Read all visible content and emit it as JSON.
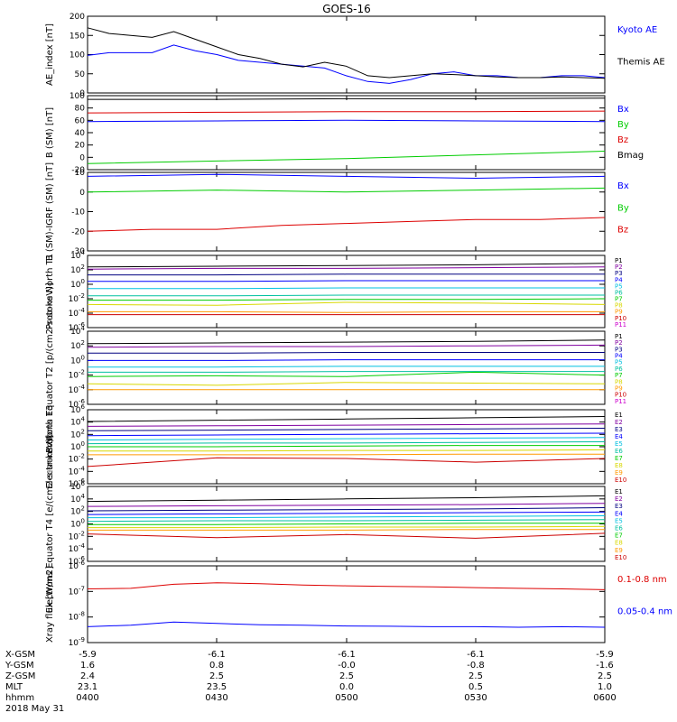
{
  "title": "GOES-16",
  "colors": {
    "black": "#000000",
    "blue": "#0000ff",
    "green": "#00cc00",
    "red": "#dd0000",
    "navy": "#000080",
    "purple": "#8000a0",
    "cyan": "#00c0e0",
    "teal": "#00c0a0",
    "yellow": "#d8d800",
    "orange": "#ff9900",
    "darkred": "#cc0000",
    "magenta": "#cc00cc"
  },
  "ephemeris": {
    "rows": [
      {
        "label": "X-GSM",
        "values": [
          "-5.9",
          "-6.1",
          "-6.1",
          "-6.1",
          "-5.9"
        ]
      },
      {
        "label": "Y-GSM",
        "values": [
          "1.6",
          "0.8",
          "-0.0",
          "-0.8",
          "-1.6"
        ]
      },
      {
        "label": "Z-GSM",
        "values": [
          "2.4",
          "2.5",
          "2.5",
          "2.5",
          "2.5"
        ]
      },
      {
        "label": "MLT",
        "values": [
          "23.1",
          "23.5",
          "0.0",
          "0.5",
          "1.0"
        ]
      },
      {
        "label": "hhmm",
        "values": [
          "0400",
          "0430",
          "0500",
          "0530",
          "0600"
        ]
      }
    ],
    "date": "2018 May 31"
  },
  "chart_data": [
    {
      "type": "line",
      "panel": "ae",
      "ylabel": "AE_index [nT]",
      "ylim": [
        0,
        200
      ],
      "yticks": [
        "0",
        "50",
        "100",
        "150",
        "200"
      ],
      "xlim": [
        "0400",
        "0600"
      ],
      "series": [
        {
          "name": "Kyoto AE",
          "color": "#0000ff",
          "x_minutes": [
            0,
            5,
            10,
            15,
            20,
            25,
            30,
            35,
            40,
            45,
            50,
            55,
            60,
            65,
            70,
            75,
            80,
            85,
            90,
            95,
            100,
            105,
            110,
            115,
            120
          ],
          "values": [
            98,
            105,
            105,
            105,
            125,
            110,
            100,
            85,
            80,
            75,
            70,
            65,
            45,
            30,
            25,
            35,
            50,
            55,
            45,
            45,
            40,
            40,
            45,
            45,
            40
          ]
        },
        {
          "name": "Themis AE",
          "color": "#000000",
          "x_minutes": [
            0,
            5,
            10,
            15,
            20,
            25,
            30,
            35,
            40,
            45,
            50,
            55,
            60,
            65,
            70,
            75,
            80,
            85,
            90,
            95,
            100,
            105,
            110,
            115,
            120
          ],
          "values": [
            170,
            155,
            150,
            145,
            160,
            140,
            120,
            100,
            90,
            75,
            68,
            80,
            70,
            45,
            40,
            45,
            50,
            48,
            45,
            42,
            40,
            40,
            42,
            40,
            38
          ]
        }
      ]
    },
    {
      "type": "line",
      "panel": "b_sm",
      "ylabel": "B (SM) [nT]",
      "ylim": [
        -20,
        100
      ],
      "yticks": [
        "-20",
        "0",
        "20",
        "40",
        "60",
        "80",
        "100"
      ],
      "series": [
        {
          "name": "Bx",
          "color": "#0000ff",
          "x_minutes": [
            0,
            30,
            60,
            90,
            120
          ],
          "values": [
            58,
            59,
            60,
            59,
            58
          ]
        },
        {
          "name": "By",
          "color": "#00cc00",
          "x_minutes": [
            0,
            30,
            60,
            90,
            120
          ],
          "values": [
            -10,
            -6,
            -2,
            4,
            10
          ]
        },
        {
          "name": "Bz",
          "color": "#dd0000",
          "x_minutes": [
            0,
            30,
            60,
            90,
            120
          ],
          "values": [
            72,
            73,
            74,
            74,
            75
          ]
        },
        {
          "name": "Bmag",
          "color": "#000000",
          "x_minutes": [
            0,
            30,
            60,
            90,
            120
          ],
          "values": [
            94,
            94,
            95,
            95,
            96
          ]
        }
      ]
    },
    {
      "type": "line",
      "panel": "b_minus_igrf",
      "ylabel": "B (SM)-IGRF (SM) [nT]",
      "ylim": [
        -30,
        10
      ],
      "yticks": [
        "-30",
        "-20",
        "-10",
        "0",
        "10"
      ],
      "series": [
        {
          "name": "Bx",
          "color": "#0000ff",
          "x_minutes": [
            0,
            30,
            60,
            90,
            120
          ],
          "values": [
            8,
            9,
            8,
            7,
            8
          ]
        },
        {
          "name": "By",
          "color": "#00cc00",
          "x_minutes": [
            0,
            30,
            60,
            90,
            120
          ],
          "values": [
            0,
            1,
            0,
            1,
            2
          ]
        },
        {
          "name": "Bz",
          "color": "#dd0000",
          "x_minutes": [
            0,
            15,
            30,
            45,
            60,
            75,
            90,
            105,
            120
          ],
          "values": [
            -20,
            -19,
            -19,
            -17,
            -16,
            -15,
            -14,
            -14,
            -13
          ]
        }
      ]
    },
    {
      "type": "line",
      "panel": "protons_t1",
      "ylabel": "Protons North T1",
      "ylog": true,
      "ylim_exp": [
        -6,
        4
      ],
      "yticks": [
        "10^-6",
        "10^-4",
        "10^-2",
        "10^0",
        "10^2",
        "10^4"
      ],
      "series": [
        {
          "name": "P1",
          "color": "#000000",
          "log_values": [
            2.4,
            2.5,
            2.6,
            2.7,
            2.9
          ]
        },
        {
          "name": "P2",
          "color": "#8000a0",
          "log_values": [
            2.1,
            2.2,
            2.2,
            2.3,
            2.4
          ]
        },
        {
          "name": "P3",
          "color": "#000080",
          "log_values": [
            1.3,
            1.3,
            1.4,
            1.4,
            1.4
          ]
        },
        {
          "name": "P4",
          "color": "#0000ff",
          "log_values": [
            0.4,
            0.4,
            0.5,
            0.5,
            0.5
          ]
        },
        {
          "name": "P5",
          "color": "#00c0e0",
          "log_values": [
            -0.6,
            -0.6,
            -0.5,
            -0.5,
            -0.5
          ]
        },
        {
          "name": "P6",
          "color": "#00c0a0",
          "log_values": [
            -1.6,
            -1.6,
            -1.5,
            -1.5,
            -1.5
          ]
        },
        {
          "name": "P7",
          "color": "#00cc00",
          "log_values": [
            -2.2,
            -2.2,
            -2.1,
            -2.1,
            -2.0
          ]
        },
        {
          "name": "P8",
          "color": "#d8d800",
          "log_values": [
            -2.8,
            -2.9,
            -2.5,
            -2.6,
            -2.8
          ]
        },
        {
          "name": "P9",
          "color": "#ff9900",
          "log_values": [
            -3.8,
            -3.8,
            -3.9,
            -3.8,
            -3.8
          ]
        },
        {
          "name": "P10",
          "color": "#cc0000",
          "log_values": [
            -4.2,
            -4.2,
            -4.2,
            -4.2,
            -4.2
          ]
        },
        {
          "name": "P11",
          "color": "#cc00cc",
          "log_values": []
        }
      ]
    },
    {
      "type": "line",
      "panel": "protons_t2",
      "ylabel": "Protons Equator T2 [p/(cm2-s-sr-keV)]",
      "ylog": true,
      "ylim_exp": [
        -6,
        4
      ],
      "yticks": [
        "10^-6",
        "10^-4",
        "10^-2",
        "10^0",
        "10^2",
        "10^4"
      ],
      "series": [
        {
          "name": "P1",
          "color": "#000000",
          "log_values": [
            2.3,
            2.4,
            2.5,
            2.6,
            2.8
          ]
        },
        {
          "name": "P2",
          "color": "#8000a0",
          "log_values": [
            1.8,
            1.9,
            1.9,
            2.0,
            2.1
          ]
        },
        {
          "name": "P3",
          "color": "#000080",
          "log_values": [
            1.0,
            1.0,
            1.1,
            1.1,
            1.1
          ]
        },
        {
          "name": "P4",
          "color": "#0000ff",
          "log_values": [
            0.0,
            0.0,
            0.1,
            0.1,
            0.1
          ]
        },
        {
          "name": "P5",
          "color": "#00c0e0",
          "log_values": [
            -0.9,
            -0.9,
            -0.8,
            -0.8,
            -0.8
          ]
        },
        {
          "name": "P6",
          "color": "#00c0a0",
          "log_values": [
            -1.6,
            -1.6,
            -1.5,
            -1.5,
            -1.5
          ]
        },
        {
          "name": "P7",
          "color": "#00cc00",
          "log_values": [
            -2.2,
            -2.1,
            -2.2,
            -1.6,
            -2.0
          ]
        },
        {
          "name": "P8",
          "color": "#d8d800",
          "log_values": [
            -3.2,
            -3.4,
            -3.0,
            -3.1,
            -3.2
          ]
        },
        {
          "name": "P9",
          "color": "#ff9900",
          "log_values": [
            -4.0,
            -4.0,
            -4.0,
            -4.0,
            -4.0
          ]
        },
        {
          "name": "P10",
          "color": "#cc0000",
          "log_values": []
        },
        {
          "name": "P11",
          "color": "#cc00cc",
          "log_values": []
        }
      ]
    },
    {
      "type": "line",
      "panel": "electrons_t3",
      "ylabel": "Electrons North T3",
      "ylog": true,
      "ylim_exp": [
        -6,
        6
      ],
      "yticks": [
        "10^-6",
        "10^-4",
        "10^-2",
        "10^0",
        "10^2",
        "10^4",
        "10^6"
      ],
      "series": [
        {
          "name": "E1",
          "color": "#000000",
          "log_values": [
            4.1,
            4.3,
            4.5,
            4.7,
            4.9
          ]
        },
        {
          "name": "E2",
          "color": "#8000a0",
          "log_values": [
            3.3,
            3.4,
            3.5,
            3.6,
            3.7
          ]
        },
        {
          "name": "E3",
          "color": "#000080",
          "log_values": [
            2.6,
            2.7,
            2.8,
            2.9,
            3.0
          ]
        },
        {
          "name": "E4",
          "color": "#0000ff",
          "log_values": [
            1.8,
            1.9,
            2.0,
            2.1,
            2.2
          ]
        },
        {
          "name": "E5",
          "color": "#00c0e0",
          "log_values": [
            1.1,
            1.2,
            1.3,
            1.4,
            1.5
          ]
        },
        {
          "name": "E6",
          "color": "#00c0a0",
          "log_values": [
            0.5,
            0.6,
            0.6,
            0.7,
            0.8
          ]
        },
        {
          "name": "E7",
          "color": "#00cc00",
          "log_values": [
            0.0,
            0.0,
            0.1,
            0.2,
            0.2
          ]
        },
        {
          "name": "E8",
          "color": "#d8d800",
          "log_values": [
            -0.7,
            -0.7,
            -0.6,
            -0.6,
            -0.5
          ]
        },
        {
          "name": "E9",
          "color": "#ff9900",
          "log_values": [
            -1.3,
            -1.3,
            -1.3,
            -1.2,
            -1.2
          ]
        },
        {
          "name": "E10",
          "color": "#cc0000",
          "log_values": [
            -3.2,
            -1.8,
            -1.9,
            -2.5,
            -1.9
          ]
        }
      ]
    },
    {
      "type": "line",
      "panel": "electrons_t4",
      "ylabel": "Electrons Equator T4 [e/(cm2-s-sr-keV)]",
      "ylog": true,
      "ylim_exp": [
        -6,
        6
      ],
      "yticks": [
        "10^-6",
        "10^-4",
        "10^-2",
        "10^0",
        "10^2",
        "10^4",
        "10^6"
      ],
      "series": [
        {
          "name": "E1",
          "color": "#000000",
          "log_values": [
            3.6,
            3.8,
            4.0,
            4.2,
            4.5
          ]
        },
        {
          "name": "E2",
          "color": "#8000a0",
          "log_values": [
            2.8,
            2.9,
            3.0,
            3.1,
            3.3
          ]
        },
        {
          "name": "E3",
          "color": "#000080",
          "log_values": [
            2.1,
            2.2,
            2.3,
            2.4,
            2.6
          ]
        },
        {
          "name": "E4",
          "color": "#0000ff",
          "log_values": [
            1.5,
            1.6,
            1.7,
            1.8,
            1.9
          ]
        },
        {
          "name": "E5",
          "color": "#00c0e0",
          "log_values": [
            1.0,
            1.0,
            1.1,
            1.2,
            1.3
          ]
        },
        {
          "name": "E6",
          "color": "#00c0a0",
          "log_values": [
            0.4,
            0.5,
            0.5,
            0.6,
            0.7
          ]
        },
        {
          "name": "E7",
          "color": "#00cc00",
          "log_values": [
            -0.1,
            -0.1,
            0.0,
            0.1,
            0.1
          ]
        },
        {
          "name": "E8",
          "color": "#d8d800",
          "log_values": [
            -0.6,
            -0.6,
            -0.5,
            -0.5,
            -0.4
          ]
        },
        {
          "name": "E9",
          "color": "#ff9900",
          "log_values": [
            -1.0,
            -1.0,
            -1.0,
            -0.9,
            -0.9
          ]
        },
        {
          "name": "E10",
          "color": "#cc0000",
          "log_values": [
            -1.6,
            -2.2,
            -1.7,
            -2.3,
            -1.5
          ]
        }
      ]
    },
    {
      "type": "line",
      "panel": "xray",
      "ylabel": "Xray flux [W/m2]",
      "ylog": true,
      "ylim_exp": [
        -9,
        -6
      ],
      "yticks": [
        "10^-9",
        "10^-8",
        "10^-7",
        "10^-6"
      ],
      "series": [
        {
          "name": "0.1-0.8 nm",
          "color": "#dd0000",
          "x_minutes": [
            0,
            10,
            20,
            30,
            40,
            50,
            60,
            70,
            80,
            90,
            100,
            110,
            120
          ],
          "log_values": [
            -6.9,
            -6.88,
            -6.72,
            -6.66,
            -6.7,
            -6.75,
            -6.78,
            -6.8,
            -6.82,
            -6.85,
            -6.88,
            -6.9,
            -6.93
          ]
        },
        {
          "name": "0.05-0.4 nm",
          "color": "#0000ff",
          "x_minutes": [
            0,
            10,
            20,
            30,
            40,
            50,
            60,
            70,
            80,
            90,
            100,
            110,
            120
          ],
          "log_values": [
            -8.38,
            -8.32,
            -8.2,
            -8.25,
            -8.3,
            -8.32,
            -8.35,
            -8.36,
            -8.38,
            -8.38,
            -8.4,
            -8.38,
            -8.4
          ]
        }
      ]
    }
  ]
}
